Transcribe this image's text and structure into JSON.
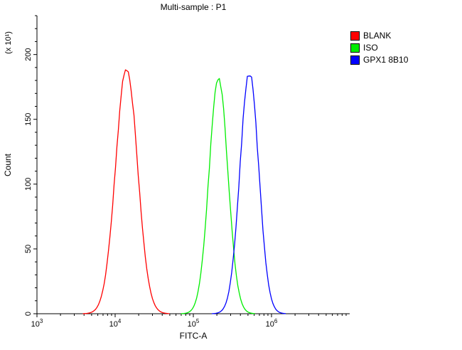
{
  "title": "Multi-sample : P1",
  "legend": {
    "items": [
      {
        "label": "BLANK",
        "color": "#ff0000"
      },
      {
        "label": "ISO",
        "color": "#00ee00"
      },
      {
        "label": "GPX1 8B10",
        "color": "#0000ff"
      }
    ]
  },
  "chart_data": {
    "type": "line",
    "subtype": "flow-cytometry-histogram",
    "title": "Multi-sample : P1",
    "xlabel": "FITC-A",
    "ylabel": "Count",
    "y_unit_label": "(x 10¹)",
    "x_scale": "log",
    "xlim": [
      1000,
      10000000
    ],
    "ylim": [
      0,
      230
    ],
    "y_ticks": [
      0,
      50,
      100,
      150,
      200
    ],
    "x_ticks": [
      1000,
      10000,
      100000,
      1000000
    ],
    "x_tick_labels": [
      "10^3",
      "10^4",
      "10^5",
      "10^6"
    ],
    "grid": false,
    "legend_position": "top-right",
    "series": [
      {
        "name": "BLANK",
        "color": "#ff0000",
        "peak_x": 14000,
        "peak_y": 190,
        "log_sigma": 0.14
      },
      {
        "name": "ISO",
        "color": "#00ee00",
        "peak_x": 210000,
        "peak_y": 182,
        "log_sigma": 0.12
      },
      {
        "name": "GPX1 8B10",
        "color": "#0000ff",
        "peak_x": 520000,
        "peak_y": 186,
        "log_sigma": 0.12
      }
    ]
  }
}
